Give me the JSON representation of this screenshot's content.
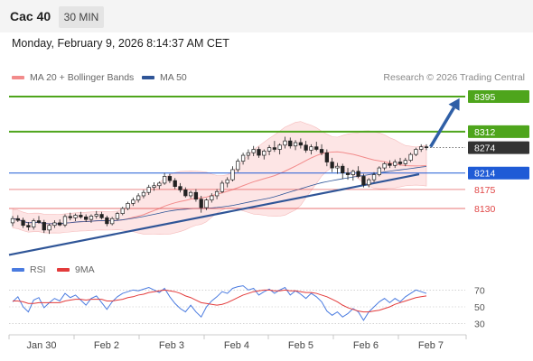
{
  "header": {
    "title": "Cac 40",
    "timeframe": "30 MIN"
  },
  "datetime": "Monday, February 9, 2026 8:14:37 AM CET",
  "legend": {
    "bollinger": {
      "label": "MA 20 + Bollinger Bands",
      "color": "#f28b8b"
    },
    "ma50": {
      "label": "MA 50",
      "color": "#2f5597"
    }
  },
  "copyright": "Research © 2026 Trading Central",
  "chart_data": {
    "type": "candlestick",
    "x_labels": [
      "Jan 30",
      "Feb 2",
      "Feb 3",
      "Feb 4",
      "Feb 5",
      "Feb 6",
      "Feb 7"
    ],
    "price_levels": [
      {
        "label": "8395",
        "value": 8395,
        "kind": "target",
        "color": "#4ea51c"
      },
      {
        "label": "8312",
        "value": 8312,
        "kind": "resistance",
        "color": "#4ea51c"
      },
      {
        "label": "8274",
        "value": 8274,
        "kind": "last",
        "color": "#333333"
      },
      {
        "label": "8214",
        "value": 8214,
        "kind": "pivot",
        "color": "#1f5bd6"
      },
      {
        "label": "8175",
        "value": 8175,
        "kind": "support",
        "color": "#e04545"
      },
      {
        "label": "8130",
        "value": 8130,
        "kind": "support",
        "color": "#e04545"
      }
    ],
    "trendline": {
      "from": {
        "x": 0,
        "y": 8020
      },
      "to": {
        "x": 1,
        "y": 8211
      }
    },
    "arrow": {
      "from": {
        "x": 1.01,
        "y": 8276
      },
      "to": {
        "x": 1.08,
        "y": 8391
      }
    },
    "candles": [
      [
        8096,
        8112,
        8088,
        8106
      ],
      [
        8106,
        8114,
        8098,
        8102
      ],
      [
        8102,
        8108,
        8084,
        8090
      ],
      [
        8090,
        8098,
        8078,
        8086
      ],
      [
        8086,
        8106,
        8080,
        8101
      ],
      [
        8101,
        8112,
        8094,
        8097
      ],
      [
        8097,
        8103,
        8072,
        8079
      ],
      [
        8079,
        8094,
        8070,
        8090
      ],
      [
        8090,
        8102,
        8084,
        8096
      ],
      [
        8096,
        8104,
        8088,
        8091
      ],
      [
        8091,
        8116,
        8086,
        8111
      ],
      [
        8111,
        8120,
        8102,
        8108
      ],
      [
        8108,
        8118,
        8100,
        8114
      ],
      [
        8114,
        8122,
        8106,
        8110
      ],
      [
        8110,
        8116,
        8098,
        8104
      ],
      [
        8104,
        8116,
        8096,
        8112
      ],
      [
        8112,
        8124,
        8106,
        8116
      ],
      [
        8116,
        8122,
        8104,
        8108
      ],
      [
        8108,
        8113,
        8088,
        8094
      ],
      [
        8094,
        8110,
        8090,
        8106
      ],
      [
        8106,
        8122,
        8102,
        8118
      ],
      [
        8118,
        8134,
        8114,
        8130
      ],
      [
        8130,
        8146,
        8126,
        8142
      ],
      [
        8142,
        8156,
        8136,
        8150
      ],
      [
        8150,
        8166,
        8144,
        8160
      ],
      [
        8160,
        8174,
        8154,
        8168
      ],
      [
        8168,
        8186,
        8162,
        8180
      ],
      [
        8180,
        8192,
        8172,
        8184
      ],
      [
        8184,
        8194,
        8176,
        8190
      ],
      [
        8190,
        8214,
        8186,
        8206
      ],
      [
        8206,
        8212,
        8190,
        8196
      ],
      [
        8196,
        8202,
        8176,
        8182
      ],
      [
        8182,
        8190,
        8168,
        8174
      ],
      [
        8174,
        8180,
        8156,
        8160
      ],
      [
        8160,
        8172,
        8154,
        8168
      ],
      [
        8168,
        8176,
        8146,
        8152
      ],
      [
        8152,
        8160,
        8120,
        8132
      ],
      [
        8132,
        8154,
        8126,
        8150
      ],
      [
        8150,
        8166,
        8144,
        8160
      ],
      [
        8160,
        8176,
        8152,
        8170
      ],
      [
        8170,
        8196,
        8166,
        8190
      ],
      [
        8190,
        8204,
        8180,
        8198
      ],
      [
        8198,
        8230,
        8194,
        8222
      ],
      [
        8222,
        8248,
        8216,
        8242
      ],
      [
        8242,
        8262,
        8234,
        8256
      ],
      [
        8256,
        8270,
        8246,
        8262
      ],
      [
        8262,
        8278,
        8254,
        8270
      ],
      [
        8270,
        8276,
        8250,
        8256
      ],
      [
        8256,
        8270,
        8246,
        8266
      ],
      [
        8266,
        8280,
        8256,
        8274
      ],
      [
        8274,
        8290,
        8264,
        8270
      ],
      [
        8270,
        8284,
        8258,
        8280
      ],
      [
        8280,
        8300,
        8272,
        8290
      ],
      [
        8290,
        8298,
        8272,
        8278
      ],
      [
        8278,
        8292,
        8268,
        8286
      ],
      [
        8286,
        8296,
        8272,
        8280
      ],
      [
        8280,
        8290,
        8262,
        8268
      ],
      [
        8268,
        8282,
        8258,
        8276
      ],
      [
        8276,
        8288,
        8266,
        8270
      ],
      [
        8270,
        8282,
        8256,
        8262
      ],
      [
        8262,
        8270,
        8230,
        8240
      ],
      [
        8240,
        8250,
        8216,
        8226
      ],
      [
        8226,
        8238,
        8212,
        8230
      ],
      [
        8230,
        8236,
        8200,
        8214
      ],
      [
        8214,
        8226,
        8198,
        8210
      ],
      [
        8210,
        8222,
        8196,
        8218
      ],
      [
        8218,
        8230,
        8202,
        8206
      ],
      [
        8206,
        8212,
        8180,
        8186
      ],
      [
        8186,
        8202,
        8180,
        8198
      ],
      [
        8198,
        8216,
        8192,
        8210
      ],
      [
        8210,
        8230,
        8206,
        8226
      ],
      [
        8226,
        8240,
        8220,
        8236
      ],
      [
        8236,
        8244,
        8226,
        8232
      ],
      [
        8232,
        8246,
        8226,
        8240
      ],
      [
        8240,
        8250,
        8232,
        8236
      ],
      [
        8236,
        8250,
        8230,
        8244
      ],
      [
        8244,
        8262,
        8240,
        8258
      ],
      [
        8258,
        8274,
        8254,
        8270
      ],
      [
        8270,
        8282,
        8264,
        8276
      ],
      [
        8276,
        8282,
        8268,
        8274
      ]
    ],
    "rsi": {
      "name": "RSI",
      "ma_name": "9MA",
      "color": "#4a7be0",
      "ma_color": "#e33b3b",
      "levels": [
        30,
        50,
        70
      ],
      "ylim": [
        20,
        80
      ],
      "values": [
        56,
        62,
        50,
        44,
        58,
        61,
        49,
        55,
        60,
        57,
        66,
        61,
        64,
        58,
        52,
        60,
        63,
        55,
        47,
        56,
        62,
        66,
        68,
        70,
        69,
        71,
        73,
        70,
        67,
        72,
        62,
        54,
        48,
        44,
        52,
        44,
        38,
        50,
        57,
        62,
        68,
        66,
        72,
        74,
        75,
        70,
        72,
        64,
        68,
        71,
        66,
        70,
        73,
        64,
        69,
        65,
        60,
        66,
        62,
        56,
        45,
        40,
        44,
        38,
        42,
        48,
        44,
        34,
        44,
        50,
        56,
        60,
        55,
        60,
        56,
        62,
        66,
        70,
        68,
        66
      ],
      "ma_values": [
        57,
        57,
        56,
        54,
        54,
        55,
        55,
        55,
        55,
        55,
        57,
        58,
        59,
        59,
        58,
        59,
        59,
        59,
        57,
        57,
        58,
        59,
        61,
        62,
        64,
        65,
        67,
        68,
        69,
        70,
        69,
        68,
        66,
        63,
        61,
        58,
        55,
        54,
        53,
        52,
        53,
        55,
        58,
        61,
        64,
        66,
        68,
        69,
        70,
        70,
        69,
        69,
        70,
        69,
        69,
        68,
        67,
        67,
        66,
        64,
        62,
        59,
        56,
        52,
        49,
        47,
        45,
        44,
        44,
        45,
        46,
        48,
        50,
        53,
        55,
        57,
        59,
        61,
        62,
        63
      ]
    },
    "y_range": [
      8060,
      8420
    ]
  }
}
